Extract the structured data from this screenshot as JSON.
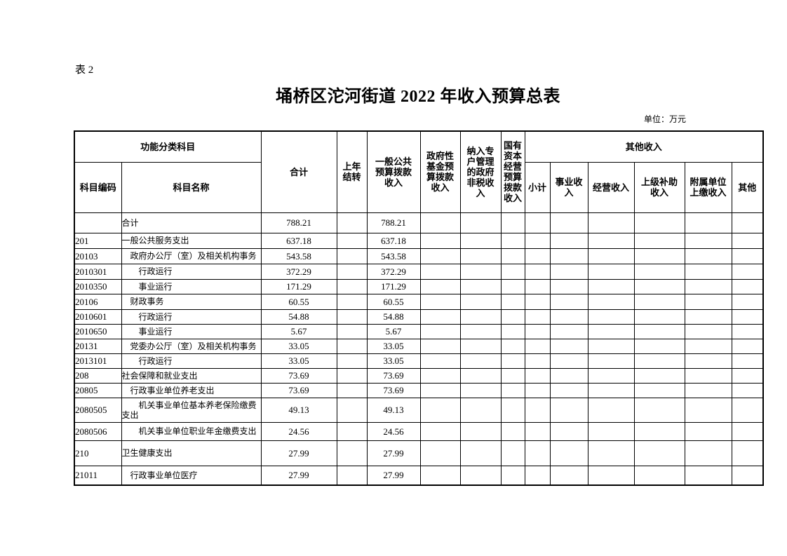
{
  "page": {
    "table_label": "表 2",
    "title": "埇桥区沱河街道 2022 年收入预算总表",
    "unit_note": "单位：万元"
  },
  "table": {
    "header": {
      "function_group": "功能分类科目",
      "code": "科目编码",
      "name": "科目名称",
      "total": "合计",
      "carryover": "上年\n结转",
      "general_budget": "一般公共\n预算拨款\n收入",
      "gov_fund": "政府性\n基金预\n算拨款\n收入",
      "special_account": "纳入专\n户管理\n的政府\n非税收\n入",
      "state_capital": "国有\n资本\n经营\n预算\n拨款\n收入",
      "other_income_group": "其他收入",
      "subtotal": "小计",
      "business_income": "事业收\n入",
      "operating_income": "经营收入",
      "superior_subsidy": "上级补助\n收入",
      "affiliated_remit": "附属单位\n上缴收入",
      "other": "其他"
    },
    "column_keys": [
      "code",
      "name",
      "total",
      "carryover",
      "general_budget",
      "gov_fund",
      "special_account",
      "state_capital",
      "subtotal",
      "business_income",
      "operating_income",
      "superior_subsidy",
      "affiliated_remit",
      "other"
    ],
    "rows": [
      {
        "indent": 0,
        "cells": [
          "",
          "合计",
          "788.21",
          "",
          "788.21",
          "",
          "",
          "",
          "",
          "",
          "",
          "",
          "",
          ""
        ]
      },
      {
        "indent": 0,
        "cells": [
          "201",
          "一般公共服务支出",
          "637.18",
          "",
          "637.18",
          "",
          "",
          "",
          "",
          "",
          "",
          "",
          "",
          ""
        ]
      },
      {
        "indent": 1,
        "cells": [
          "20103",
          "政府办公厅（室）及相关机构事务",
          "543.58",
          "",
          "543.58",
          "",
          "",
          "",
          "",
          "",
          "",
          "",
          "",
          ""
        ]
      },
      {
        "indent": 2,
        "cells": [
          "2010301",
          "行政运行",
          "372.29",
          "",
          "372.29",
          "",
          "",
          "",
          "",
          "",
          "",
          "",
          "",
          ""
        ]
      },
      {
        "indent": 2,
        "cells": [
          "2010350",
          "事业运行",
          "171.29",
          "",
          "171.29",
          "",
          "",
          "",
          "",
          "",
          "",
          "",
          "",
          ""
        ]
      },
      {
        "indent": 1,
        "cells": [
          "20106",
          "财政事务",
          "60.55",
          "",
          "60.55",
          "",
          "",
          "",
          "",
          "",
          "",
          "",
          "",
          ""
        ]
      },
      {
        "indent": 2,
        "cells": [
          "2010601",
          "行政运行",
          "54.88",
          "",
          "54.88",
          "",
          "",
          "",
          "",
          "",
          "",
          "",
          "",
          ""
        ]
      },
      {
        "indent": 2,
        "cells": [
          "2010650",
          "事业运行",
          "5.67",
          "",
          "5.67",
          "",
          "",
          "",
          "",
          "",
          "",
          "",
          "",
          ""
        ]
      },
      {
        "indent": 1,
        "cells": [
          "20131",
          "党委办公厅（室）及相关机构事务",
          "33.05",
          "",
          "33.05",
          "",
          "",
          "",
          "",
          "",
          "",
          "",
          "",
          ""
        ]
      },
      {
        "indent": 2,
        "cells": [
          "2013101",
          "行政运行",
          "33.05",
          "",
          "33.05",
          "",
          "",
          "",
          "",
          "",
          "",
          "",
          "",
          ""
        ]
      },
      {
        "indent": 0,
        "cells": [
          "208",
          "社会保障和就业支出",
          "73.69",
          "",
          "73.69",
          "",
          "",
          "",
          "",
          "",
          "",
          "",
          "",
          ""
        ]
      },
      {
        "indent": 1,
        "cells": [
          "20805",
          "行政事业单位养老支出",
          "73.69",
          "",
          "73.69",
          "",
          "",
          "",
          "",
          "",
          "",
          "",
          "",
          ""
        ]
      },
      {
        "indent": 2,
        "cells": [
          "2080505",
          "机关事业单位基本养老保险缴费支出",
          "49.13",
          "",
          "49.13",
          "",
          "",
          "",
          "",
          "",
          "",
          "",
          "",
          ""
        ]
      },
      {
        "indent": 2,
        "cells": [
          "2080506",
          "机关事业单位职业年金缴费支出",
          "24.56",
          "",
          "24.56",
          "",
          "",
          "",
          "",
          "",
          "",
          "",
          "",
          ""
        ]
      },
      {
        "indent": 0,
        "cells": [
          "210",
          "卫生健康支出",
          "27.99",
          "",
          "27.99",
          "",
          "",
          "",
          "",
          "",
          "",
          "",
          "",
          ""
        ]
      },
      {
        "indent": 1,
        "cells": [
          "21011",
          "行政事业单位医疗",
          "27.99",
          "",
          "27.99",
          "",
          "",
          "",
          "",
          "",
          "",
          "",
          "",
          ""
        ]
      }
    ]
  }
}
